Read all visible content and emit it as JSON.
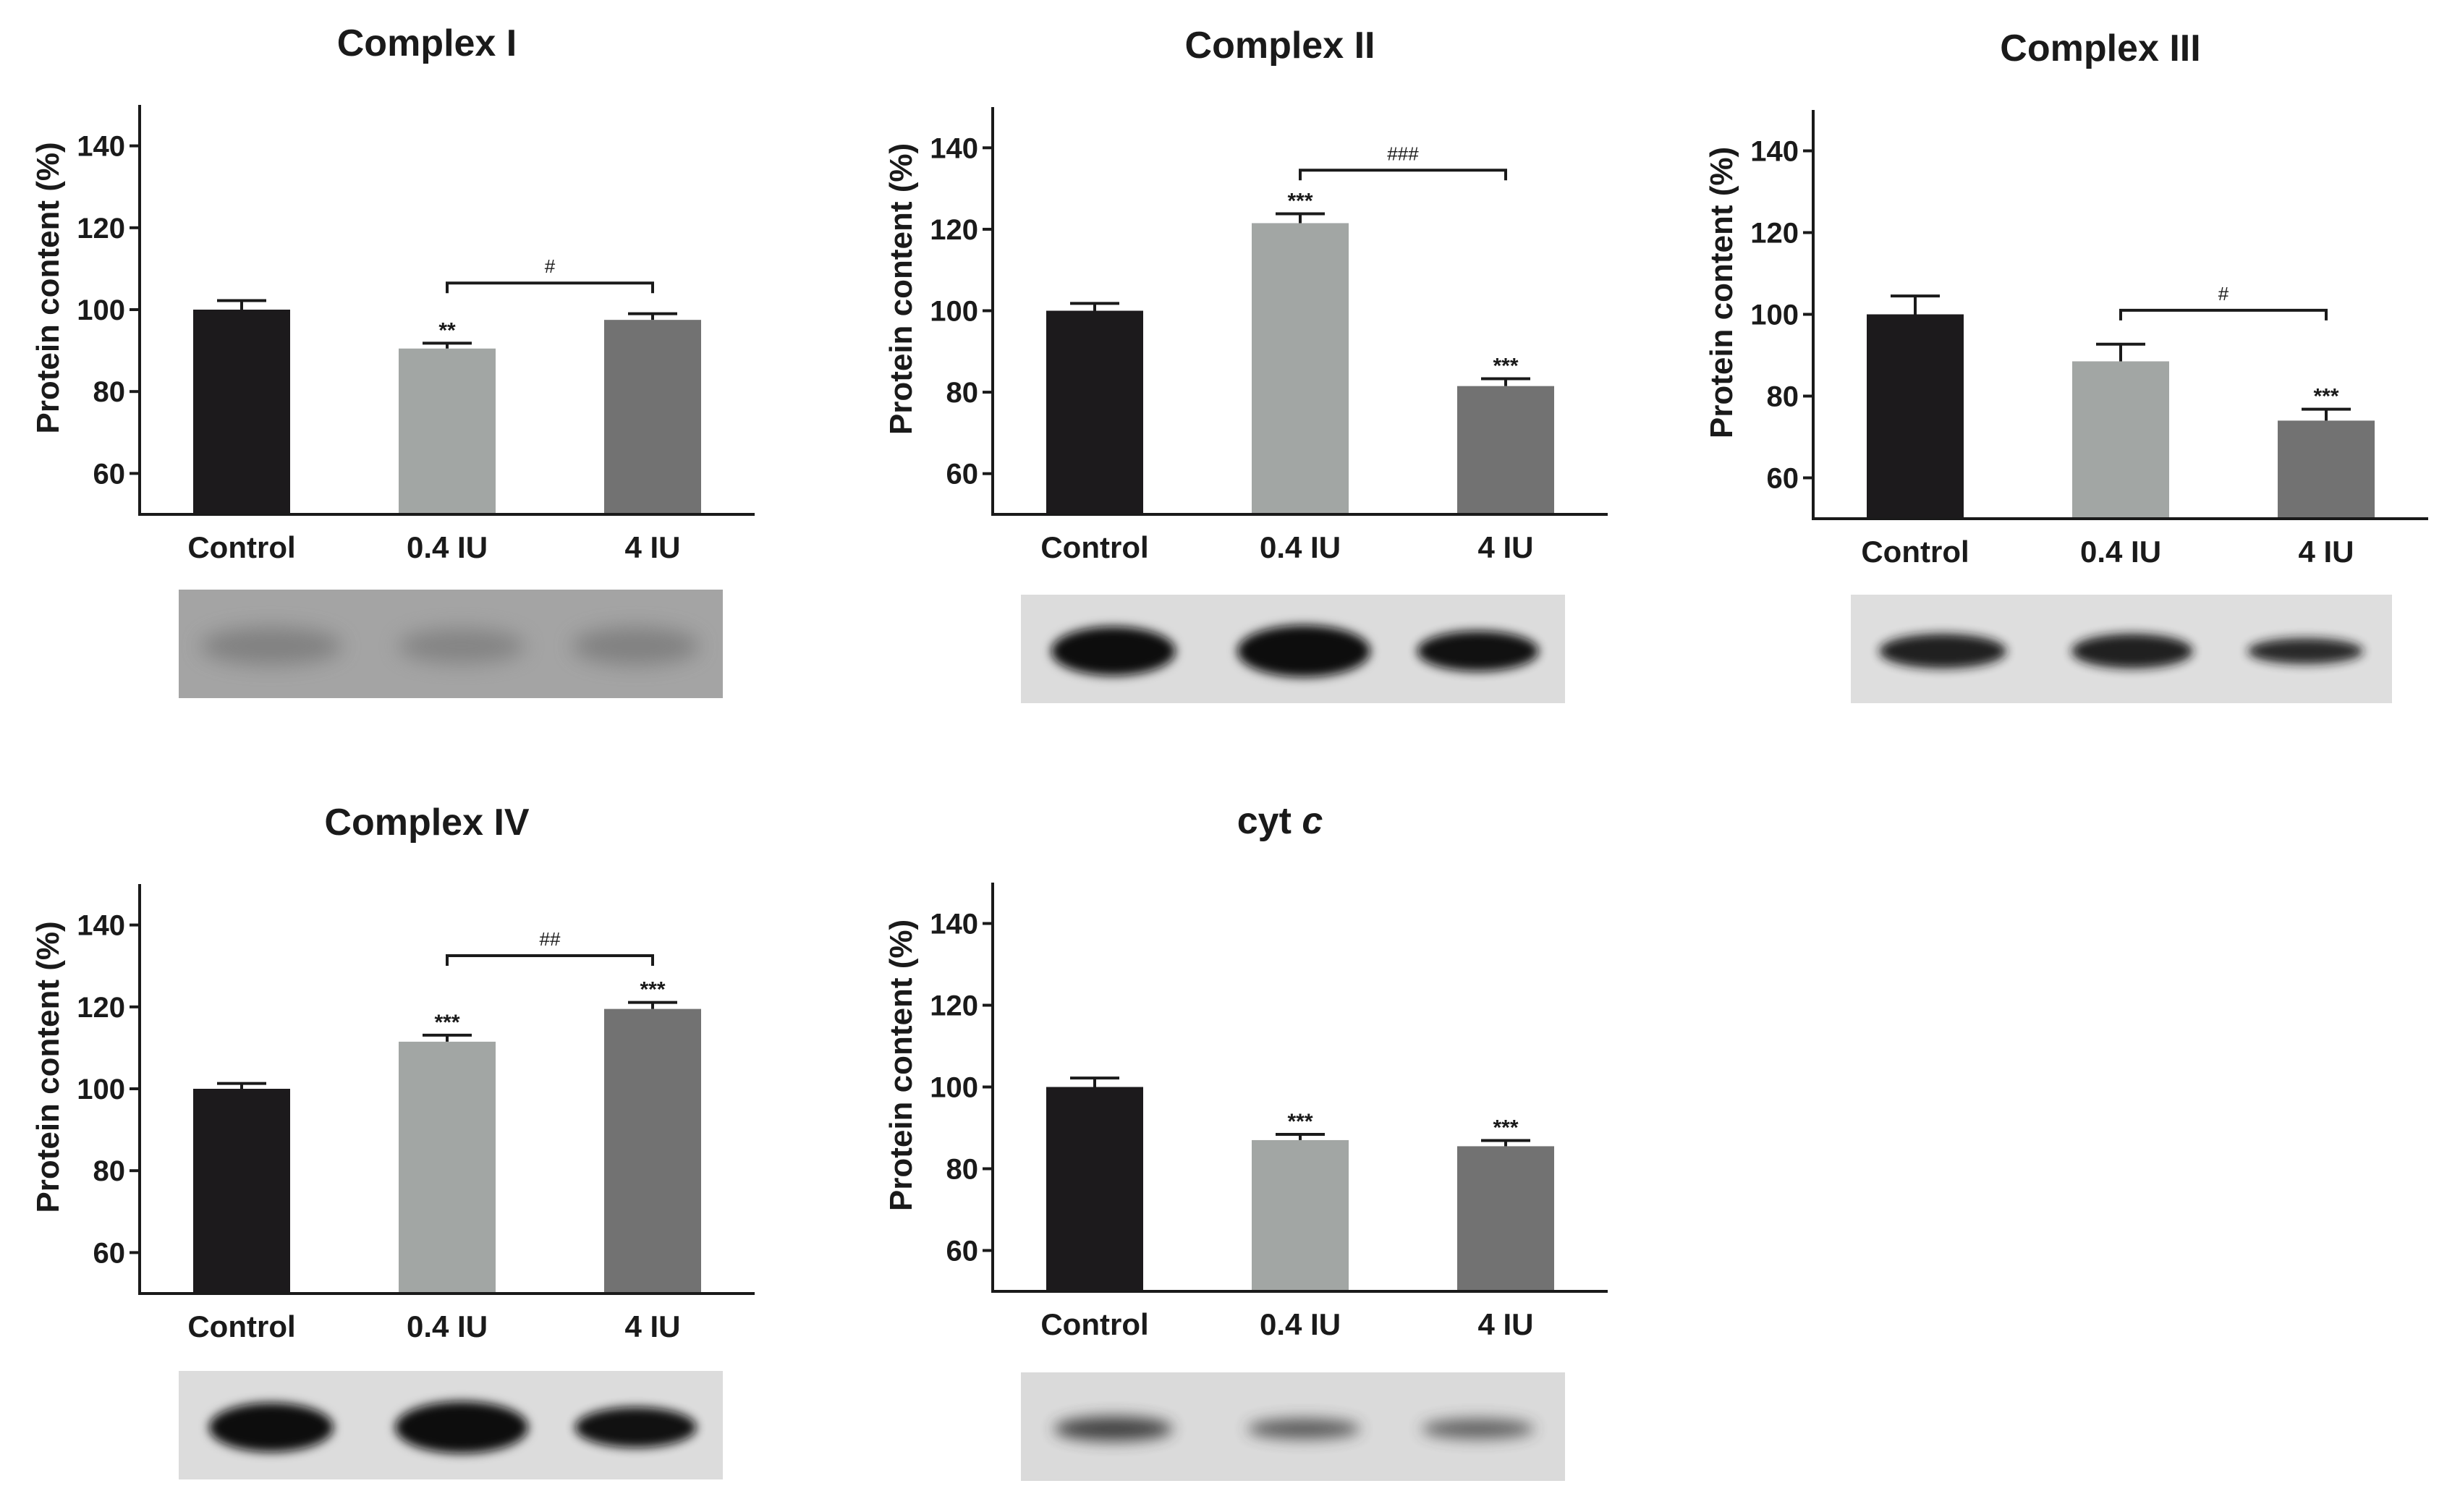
{
  "colors": {
    "background": "#ffffff",
    "axis": "#1a1a1a",
    "text": "#1a1a1a",
    "bars": [
      "#1c1a1c",
      "#a2a6a4",
      "#727272"
    ]
  },
  "chart_data": [
    {
      "type": "bar",
      "title": "Complex I",
      "title_italic": "",
      "xlabel": "",
      "ylabel": "Protein content (%)",
      "categories": [
        "Control",
        "0.4 IU",
        "4 IU"
      ],
      "values": [
        100,
        90.5,
        97.5
      ],
      "errors": [
        2.2,
        1.3,
        1.5
      ],
      "ylim": [
        50,
        150
      ],
      "yticks": [
        60,
        80,
        100,
        120,
        140
      ],
      "sig_labels": [
        "",
        "**",
        ""
      ],
      "brackets": [
        {
          "from": 1,
          "to": 2,
          "y": 106.5,
          "label": "#"
        }
      ],
      "blot": {
        "style": "faint"
      }
    },
    {
      "type": "bar",
      "title": "Complex II",
      "title_italic": "",
      "xlabel": "",
      "ylabel": "Protein content (%)",
      "categories": [
        "Control",
        "0.4 IU",
        "4 IU"
      ],
      "values": [
        100,
        121.5,
        81.5
      ],
      "errors": [
        1.8,
        2.3,
        1.8
      ],
      "ylim": [
        50,
        150
      ],
      "yticks": [
        60,
        80,
        100,
        120,
        140
      ],
      "sig_labels": [
        "",
        "***",
        "***"
      ],
      "brackets": [
        {
          "from": 1,
          "to": 2,
          "y": 134.5,
          "label": "###"
        }
      ],
      "blot": {
        "style": "strong"
      }
    },
    {
      "type": "bar",
      "title": "Complex III",
      "title_italic": "",
      "xlabel": "",
      "ylabel": "Protein content (%)",
      "categories": [
        "Control",
        "0.4 IU",
        "4 IU"
      ],
      "values": [
        100,
        88.5,
        74
      ],
      "errors": [
        4.5,
        4.2,
        2.8
      ],
      "ylim": [
        50,
        150
      ],
      "yticks": [
        60,
        80,
        100,
        120,
        140
      ],
      "sig_labels": [
        "",
        "",
        "***"
      ],
      "brackets": [
        {
          "from": 1,
          "to": 2,
          "y": 101,
          "label": "#"
        }
      ],
      "blot": {
        "style": "medium"
      }
    },
    {
      "type": "bar",
      "title": "Complex IV",
      "title_italic": "",
      "xlabel": "",
      "ylabel": "Protein content (%)",
      "categories": [
        "Control",
        "0.4 IU",
        "4 IU"
      ],
      "values": [
        100,
        111.5,
        119.5
      ],
      "errors": [
        1.3,
        1.6,
        1.6
      ],
      "ylim": [
        50,
        150
      ],
      "yticks": [
        60,
        80,
        100,
        120,
        140
      ],
      "sig_labels": [
        "",
        "***",
        "***"
      ],
      "brackets": [
        {
          "from": 1,
          "to": 2,
          "y": 132.5,
          "label": "##"
        }
      ],
      "blot": {
        "style": "strong"
      }
    },
    {
      "type": "bar",
      "title": "cyt ",
      "title_italic": "c",
      "xlabel": "",
      "ylabel": "Protein content (%)",
      "categories": [
        "Control",
        "0.4 IU",
        "4 IU"
      ],
      "values": [
        100,
        87,
        85.5
      ],
      "errors": [
        2.2,
        1.4,
        1.4
      ],
      "ylim": [
        50,
        150
      ],
      "yticks": [
        60,
        80,
        100,
        120,
        140
      ],
      "sig_labels": [
        "",
        "***",
        "***"
      ],
      "brackets": [],
      "blot": {
        "style": "light"
      }
    }
  ]
}
